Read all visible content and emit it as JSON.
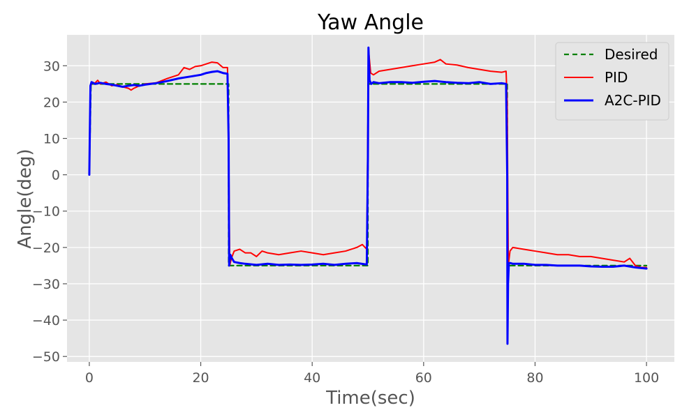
{
  "chart_data": {
    "type": "line",
    "title": "Yaw Angle",
    "xlabel": "Time(sec)",
    "ylabel": "Angle(deg)",
    "xlim": [
      -4,
      105
    ],
    "ylim": [
      -51.5,
      38.5
    ],
    "x_ticks": [
      0,
      20,
      40,
      60,
      80,
      100
    ],
    "y_ticks": [
      -50,
      -40,
      -30,
      -20,
      -10,
      0,
      10,
      20,
      30
    ],
    "grid": true,
    "legend_position": "top-right",
    "background": "#e5e5e5",
    "series": [
      {
        "name": "Desired",
        "color": "#008000",
        "style": "dashed",
        "x": [
          0,
          0.3,
          25,
          25.01,
          50,
          50.01,
          75,
          75.01,
          100
        ],
        "y": [
          0,
          25,
          25,
          -25,
          -25,
          25,
          25,
          -25,
          -25
        ]
      },
      {
        "name": "PID",
        "color": "#ff0000",
        "style": "solid",
        "x": [
          0,
          0.2,
          0.5,
          1,
          1.5,
          2,
          3,
          4,
          5,
          6,
          7,
          7.5,
          8,
          9,
          10,
          12,
          14,
          15,
          16,
          17,
          18,
          19,
          20,
          21,
          22,
          23,
          24,
          24.8,
          25,
          25.2,
          25.5,
          26,
          27,
          28,
          29,
          30,
          31,
          32,
          34,
          36,
          38,
          40,
          42,
          44,
          46,
          47,
          48,
          49,
          49.8,
          50,
          50.2,
          50.5,
          51,
          52,
          54,
          56,
          58,
          60,
          62,
          63,
          64,
          66,
          68,
          70,
          72,
          74,
          74.8,
          75,
          75.2,
          75.5,
          76,
          78,
          80,
          82,
          84,
          86,
          88,
          90,
          92,
          94,
          96,
          97,
          98,
          99,
          100
        ],
        "y": [
          0,
          24,
          25.5,
          25.2,
          26,
          25,
          25.5,
          24.5,
          24.8,
          24.2,
          23.8,
          23.3,
          23.8,
          24.5,
          25,
          25.3,
          26.5,
          27,
          27.5,
          29.5,
          29,
          29.8,
          30,
          30.5,
          31,
          30.8,
          29.5,
          29.5,
          10,
          -25,
          -23,
          -21,
          -20.5,
          -21.5,
          -21.5,
          -22.5,
          -21,
          -21.5,
          -22,
          -21.5,
          -21,
          -21.5,
          -22,
          -21.5,
          -21,
          -20.5,
          -20,
          -19.2,
          -20.5,
          15,
          33,
          28,
          27.5,
          28.5,
          29,
          29.5,
          30,
          30.5,
          31,
          31.7,
          30.5,
          30.2,
          29.5,
          29,
          28.5,
          28.2,
          28.5,
          20,
          -25,
          -21,
          -20,
          -20.5,
          -21,
          -21.5,
          -22,
          -22,
          -22.5,
          -22.5,
          -23,
          -23.5,
          -24,
          -23,
          -25,
          -25.5,
          -25.5
        ]
      },
      {
        "name": "A2C-PID",
        "color": "#0000ff",
        "style": "solid-bold",
        "x": [
          0,
          0.2,
          0.4,
          1,
          2,
          3,
          4,
          5,
          6,
          7,
          8,
          9,
          10,
          12,
          14,
          16,
          18,
          20,
          21,
          22,
          23,
          24,
          24.8,
          25,
          25.1,
          25.3,
          25.6,
          26,
          27,
          28,
          30,
          32,
          34,
          36,
          38,
          40,
          42,
          44,
          46,
          48,
          49.8,
          50,
          50.1,
          50.3,
          50.6,
          51,
          52,
          54,
          56,
          58,
          60,
          62,
          64,
          66,
          68,
          70,
          72,
          74,
          74.8,
          75,
          75.05,
          75.15,
          75.3,
          75.6,
          76,
          78,
          80,
          82,
          84,
          86,
          88,
          90,
          92,
          94,
          96,
          98,
          100
        ],
        "y": [
          0,
          24.5,
          25.5,
          25,
          25.3,
          25,
          24.8,
          24.5,
          24.2,
          24.5,
          24.7,
          24.5,
          24.8,
          25.2,
          25.8,
          26.5,
          27,
          27.5,
          28,
          28.3,
          28.5,
          28,
          27.8,
          10,
          -25,
          -22,
          -23,
          -24,
          -24.3,
          -24.5,
          -24.8,
          -24.5,
          -24.8,
          -24.7,
          -24.8,
          -24.7,
          -24.5,
          -24.8,
          -24.5,
          -24.3,
          -24.7,
          5,
          35,
          26,
          25,
          25.5,
          25.2,
          25.5,
          25.5,
          25.3,
          25.6,
          25.8,
          25.5,
          25.3,
          25.2,
          25.5,
          25,
          25.2,
          25,
          0,
          -46.5,
          -30,
          -24.3,
          -24.3,
          -24.5,
          -24.5,
          -24.8,
          -24.8,
          -25,
          -25,
          -25,
          -25.2,
          -25.3,
          -25.3,
          -25,
          -25.5,
          -25.8
        ]
      }
    ]
  }
}
